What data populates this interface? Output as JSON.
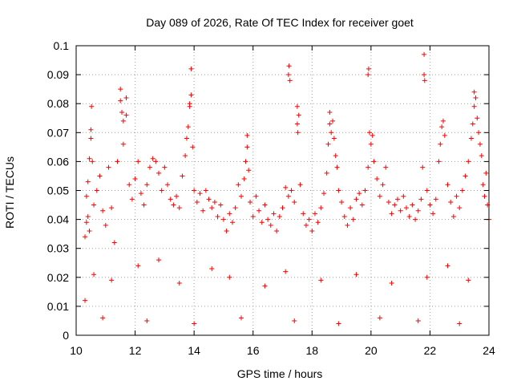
{
  "chart_data": {
    "type": "scatter",
    "title": "Day 089 of 2026, Rate Of TEC Index for receiver goet",
    "xlabel": "GPS time / hours",
    "ylabel": "ROTI / TECUs",
    "xlim": [
      10,
      24
    ],
    "ylim": [
      0,
      0.1
    ],
    "xticks": [
      10,
      12,
      14,
      16,
      18,
      20,
      22,
      24
    ],
    "yticks": [
      0,
      0.01,
      0.02,
      0.03,
      0.04,
      0.05,
      0.06,
      0.07,
      0.08,
      0.09,
      0.1
    ],
    "xtick_labels": [
      "10",
      "12",
      "14",
      "16",
      "18",
      "20",
      "22",
      "24"
    ],
    "ytick_labels": [
      "0",
      "0.01",
      "0.02",
      "0.03",
      "0.04",
      "0.05",
      "0.06",
      "0.07",
      "0.08",
      "0.09",
      "0.1"
    ],
    "grid": true,
    "marker": "+",
    "series": [
      {
        "name": "ROTI",
        "color": "#ff0000",
        "points": [
          [
            10.3,
            0.012
          ],
          [
            10.3,
            0.034
          ],
          [
            10.35,
            0.039
          ],
          [
            10.35,
            0.048
          ],
          [
            10.4,
            0.041
          ],
          [
            10.4,
            0.053
          ],
          [
            10.45,
            0.061
          ],
          [
            10.45,
            0.036
          ],
          [
            10.5,
            0.068
          ],
          [
            10.5,
            0.071
          ],
          [
            10.52,
            0.079
          ],
          [
            10.55,
            0.06
          ],
          [
            10.6,
            0.045
          ],
          [
            10.7,
            0.05
          ],
          [
            10.8,
            0.055
          ],
          [
            10.9,
            0.043
          ],
          [
            11.0,
            0.038
          ],
          [
            11.1,
            0.058
          ],
          [
            11.2,
            0.044
          ],
          [
            11.3,
            0.032
          ],
          [
            11.4,
            0.06
          ],
          [
            11.5,
            0.085
          ],
          [
            11.5,
            0.081
          ],
          [
            11.55,
            0.077
          ],
          [
            11.6,
            0.074
          ],
          [
            11.6,
            0.066
          ],
          [
            11.7,
            0.082
          ],
          [
            11.7,
            0.076
          ],
          [
            11.8,
            0.052
          ],
          [
            11.9,
            0.047
          ],
          [
            12.0,
            0.054
          ],
          [
            12.1,
            0.06
          ],
          [
            12.2,
            0.049
          ],
          [
            12.3,
            0.045
          ],
          [
            12.4,
            0.052
          ],
          [
            12.5,
            0.058
          ],
          [
            12.6,
            0.061
          ],
          [
            12.7,
            0.06
          ],
          [
            12.8,
            0.056
          ],
          [
            12.9,
            0.05
          ],
          [
            13.0,
            0.058
          ],
          [
            13.1,
            0.052
          ],
          [
            13.2,
            0.047
          ],
          [
            13.3,
            0.045
          ],
          [
            13.4,
            0.048
          ],
          [
            13.5,
            0.044
          ],
          [
            13.6,
            0.055
          ],
          [
            13.7,
            0.062
          ],
          [
            13.75,
            0.068
          ],
          [
            13.8,
            0.072
          ],
          [
            13.85,
            0.079
          ],
          [
            13.85,
            0.08
          ],
          [
            13.9,
            0.083
          ],
          [
            13.9,
            0.092
          ],
          [
            13.95,
            0.065
          ],
          [
            14.0,
            0.05
          ],
          [
            14.1,
            0.046
          ],
          [
            14.2,
            0.049
          ],
          [
            14.3,
            0.043
          ],
          [
            14.4,
            0.05
          ],
          [
            14.5,
            0.047
          ],
          [
            14.6,
            0.044
          ],
          [
            14.7,
            0.046
          ],
          [
            14.8,
            0.041
          ],
          [
            14.9,
            0.045
          ],
          [
            15.0,
            0.04
          ],
          [
            15.1,
            0.036
          ],
          [
            15.2,
            0.042
          ],
          [
            15.3,
            0.039
          ],
          [
            15.4,
            0.044
          ],
          [
            15.5,
            0.052
          ],
          [
            15.6,
            0.048
          ],
          [
            15.7,
            0.054
          ],
          [
            15.75,
            0.06
          ],
          [
            15.8,
            0.065
          ],
          [
            15.8,
            0.069
          ],
          [
            15.85,
            0.057
          ],
          [
            15.9,
            0.046
          ],
          [
            16.0,
            0.041
          ],
          [
            16.1,
            0.048
          ],
          [
            16.2,
            0.043
          ],
          [
            16.3,
            0.039
          ],
          [
            16.4,
            0.045
          ],
          [
            16.5,
            0.04
          ],
          [
            16.6,
            0.038
          ],
          [
            16.7,
            0.042
          ],
          [
            16.8,
            0.036
          ],
          [
            16.9,
            0.041
          ],
          [
            17.0,
            0.044
          ],
          [
            17.1,
            0.051
          ],
          [
            17.2,
            0.048
          ],
          [
            17.2,
            0.09
          ],
          [
            17.22,
            0.093
          ],
          [
            17.25,
            0.088
          ],
          [
            17.3,
            0.05
          ],
          [
            17.4,
            0.046
          ],
          [
            17.5,
            0.079
          ],
          [
            17.5,
            0.073
          ],
          [
            17.52,
            0.07
          ],
          [
            17.55,
            0.076
          ],
          [
            17.6,
            0.052
          ],
          [
            17.7,
            0.042
          ],
          [
            17.8,
            0.038
          ],
          [
            17.9,
            0.04
          ],
          [
            18.0,
            0.036
          ],
          [
            18.1,
            0.042
          ],
          [
            18.2,
            0.039
          ],
          [
            18.3,
            0.044
          ],
          [
            18.4,
            0.049
          ],
          [
            18.5,
            0.056
          ],
          [
            18.55,
            0.066
          ],
          [
            18.6,
            0.073
          ],
          [
            18.6,
            0.077
          ],
          [
            18.65,
            0.07
          ],
          [
            18.7,
            0.074
          ],
          [
            18.75,
            0.068
          ],
          [
            18.8,
            0.062
          ],
          [
            18.85,
            0.058
          ],
          [
            18.9,
            0.05
          ],
          [
            19.0,
            0.046
          ],
          [
            19.1,
            0.041
          ],
          [
            19.2,
            0.038
          ],
          [
            19.3,
            0.044
          ],
          [
            19.4,
            0.04
          ],
          [
            19.5,
            0.047
          ],
          [
            19.6,
            0.049
          ],
          [
            19.7,
            0.045
          ],
          [
            19.8,
            0.05
          ],
          [
            19.9,
            0.058
          ],
          [
            19.9,
            0.09
          ],
          [
            19.92,
            0.092
          ],
          [
            19.95,
            0.07
          ],
          [
            20.0,
            0.066
          ],
          [
            20.05,
            0.069
          ],
          [
            20.1,
            0.06
          ],
          [
            20.2,
            0.054
          ],
          [
            20.3,
            0.048
          ],
          [
            20.4,
            0.052
          ],
          [
            20.5,
            0.058
          ],
          [
            20.6,
            0.046
          ],
          [
            20.7,
            0.042
          ],
          [
            20.8,
            0.045
          ],
          [
            20.9,
            0.047
          ],
          [
            21.0,
            0.043
          ],
          [
            21.1,
            0.048
          ],
          [
            21.2,
            0.044
          ],
          [
            21.3,
            0.041
          ],
          [
            21.4,
            0.045
          ],
          [
            21.5,
            0.04
          ],
          [
            21.6,
            0.043
          ],
          [
            21.7,
            0.047
          ],
          [
            21.75,
            0.058
          ],
          [
            21.8,
            0.097
          ],
          [
            21.8,
            0.09
          ],
          [
            21.82,
            0.088
          ],
          [
            21.9,
            0.05
          ],
          [
            22.0,
            0.045
          ],
          [
            22.1,
            0.042
          ],
          [
            22.2,
            0.047
          ],
          [
            22.3,
            0.06
          ],
          [
            22.35,
            0.066
          ],
          [
            22.4,
            0.072
          ],
          [
            22.45,
            0.074
          ],
          [
            22.5,
            0.069
          ],
          [
            22.6,
            0.052
          ],
          [
            22.7,
            0.046
          ],
          [
            22.8,
            0.041
          ],
          [
            22.9,
            0.048
          ],
          [
            23.0,
            0.044
          ],
          [
            23.1,
            0.05
          ],
          [
            23.2,
            0.055
          ],
          [
            23.3,
            0.06
          ],
          [
            23.4,
            0.068
          ],
          [
            23.45,
            0.073
          ],
          [
            23.5,
            0.079
          ],
          [
            23.5,
            0.084
          ],
          [
            23.55,
            0.082
          ],
          [
            23.6,
            0.075
          ],
          [
            23.65,
            0.07
          ],
          [
            23.7,
            0.066
          ],
          [
            23.75,
            0.062
          ],
          [
            23.8,
            0.052
          ],
          [
            23.85,
            0.048
          ],
          [
            23.9,
            0.056
          ],
          [
            23.95,
            0.045
          ],
          [
            24.0,
            0.04
          ],
          [
            10.6,
            0.021
          ],
          [
            11.2,
            0.019
          ],
          [
            12.1,
            0.024
          ],
          [
            12.8,
            0.026
          ],
          [
            13.5,
            0.018
          ],
          [
            14.6,
            0.023
          ],
          [
            15.2,
            0.02
          ],
          [
            16.4,
            0.017
          ],
          [
            17.1,
            0.022
          ],
          [
            18.3,
            0.019
          ],
          [
            19.5,
            0.021
          ],
          [
            20.7,
            0.018
          ],
          [
            21.9,
            0.02
          ],
          [
            22.6,
            0.024
          ],
          [
            23.3,
            0.019
          ],
          [
            10.9,
            0.006
          ],
          [
            12.4,
            0.005
          ],
          [
            14.0,
            0.004
          ],
          [
            15.6,
            0.006
          ],
          [
            17.4,
            0.005
          ],
          [
            18.9,
            0.004
          ],
          [
            20.3,
            0.006
          ],
          [
            21.6,
            0.005
          ],
          [
            23.0,
            0.004
          ]
        ]
      }
    ]
  }
}
